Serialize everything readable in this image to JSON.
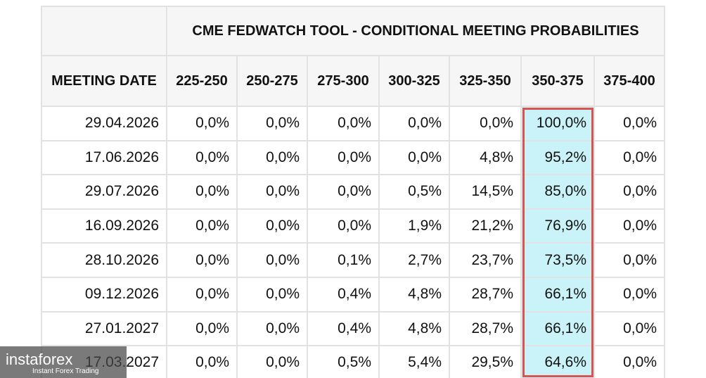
{
  "header": {
    "title": "CME FEDWATCH TOOL - CONDITIONAL MEETING PROBABILITIES"
  },
  "table": {
    "columns": [
      "MEETING DATE",
      "225-250",
      "250-275",
      "275-300",
      "300-325",
      "325-350",
      "350-375",
      "375-400"
    ],
    "rows": [
      [
        "29.04.2026",
        "0,0%",
        "0,0%",
        "0,0%",
        "0,0%",
        "0,0%",
        "100,0%",
        "0,0%"
      ],
      [
        "17.06.2026",
        "0,0%",
        "0,0%",
        "0,0%",
        "0,0%",
        "4,8%",
        "95,2%",
        "0,0%"
      ],
      [
        "29.07.2026",
        "0,0%",
        "0,0%",
        "0,0%",
        "0,5%",
        "14,5%",
        "85,0%",
        "0,0%"
      ],
      [
        "16.09.2026",
        "0,0%",
        "0,0%",
        "0,0%",
        "1,9%",
        "21,2%",
        "76,9%",
        "0,0%"
      ],
      [
        "28.10.2026",
        "0,0%",
        "0,0%",
        "0,1%",
        "2,7%",
        "23,7%",
        "73,5%",
        "0,0%"
      ],
      [
        "09.12.2026",
        "0,0%",
        "0,0%",
        "0,4%",
        "4,8%",
        "28,7%",
        "66,1%",
        "0,0%"
      ],
      [
        "27.01.2027",
        "0,0%",
        "0,0%",
        "0,4%",
        "4,8%",
        "28,7%",
        "66,1%",
        "0,0%"
      ],
      [
        "17.03.2027",
        "0,0%",
        "0,0%",
        "0,5%",
        "5,4%",
        "29,5%",
        "64,6%",
        "0,0%"
      ]
    ]
  },
  "watermark": {
    "brand": "instaforex",
    "tagline": "Instant Forex Trading"
  }
}
